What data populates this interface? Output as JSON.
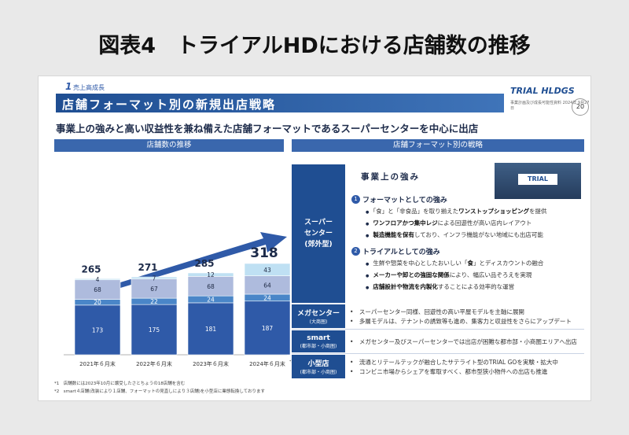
{
  "page_title": "図表4　トライアルHDにおける店舗数の推移",
  "slide": {
    "section_number": "1",
    "section_label": "売上高成長",
    "title": "店舗フォーマット別の新規出店戦略",
    "logo": "TRIAL HLDGS",
    "logo_sub": "事業計画及び成長可能性資料 2024年 9月27日",
    "page_number": "20",
    "lead": "事業上の強みと高い収益性を兼ね備えた店舗フォーマットであるスーパーセンターを中心に出店",
    "left_header": "店舗数の推移",
    "right_header": "店舗フォーマット別の戦略"
  },
  "chart_data": {
    "type": "bar",
    "stacked": true,
    "categories": [
      "2021年６月末",
      "2022年６月末",
      "2023年６月末",
      "2024年６月末"
    ],
    "category_superscript": [
      "",
      "",
      "",
      "*1*2"
    ],
    "totals": [
      "265",
      "271",
      "285",
      "318"
    ],
    "series": [
      {
        "values": [
          173,
          175,
          181,
          187
        ],
        "color": "#2f5aa8"
      },
      {
        "values": [
          20,
          22,
          24,
          24
        ],
        "color": "#4a86c8"
      },
      {
        "values": [
          68,
          67,
          68,
          64
        ],
        "color": "#aebbdd"
      },
      {
        "values": [
          4,
          7,
          12,
          43
        ],
        "color": "#bfe0f3"
      }
    ]
  },
  "notes": [
    "*1　店舗数には2023年10月に譲受したさとちょうの18店舗を含む",
    "*2　smart４店舗(改装により１店舗、フォーマットの見直しにより３店舗)を小型店に業態転換しております"
  ],
  "strategy": {
    "supercenter_label": "スーパー\nセンター\n(郊外型)",
    "strengths_title": "事業上の強み",
    "store_sign": "TRIAL",
    "point1_no": "1",
    "point1_title": "フォーマットとしての強み",
    "point1_bullets": [
      {
        "pre": "「食」と「非食品」を取り揃えた",
        "bold": "ワンストップショッピング",
        "post": "を提供"
      },
      {
        "pre": "",
        "bold": "ワンフロアかつ集中レジ",
        "post": "による回遊性が高い店内レイアウト"
      },
      {
        "pre": "",
        "bold": "製造機能を保有",
        "post": "しており、インフラ機能がない地域にも出店可能"
      }
    ],
    "point2_no": "2",
    "point2_title": "トライアルとしての強み",
    "point2_bullets": [
      {
        "pre": "生鮮や惣菜を中心としたおいしい「",
        "bold": "食",
        "post": "」とディスカウントの融合"
      },
      {
        "pre": "",
        "bold": "メーカーや卸との強固な関係",
        "post": "により、幅広い品ぞろえを実現"
      },
      {
        "pre": "",
        "bold": "店舗設計や物流を内製化",
        "post": "することによる効率的な運営"
      }
    ],
    "formats": [
      {
        "name": "メガセンター",
        "sub": "(大商圏)",
        "lines": [
          "スーパーセンター同様、回遊性の高い平屋モデルを主軸に展開",
          "多層モデルは、テナントの誘致等も進め、集客力と収益性をさらにアップデート"
        ]
      },
      {
        "name": "smart",
        "sub": "(都市部・小商圏)",
        "lines": [
          "メガセンター及びスーパーセンターでは出店が困難な都市部・小商圏エリアへ出店"
        ]
      },
      {
        "name": "小型店",
        "sub": "(都市部・小商圏)",
        "lines": [
          "流通とリテールテックが融合したサテライト型のTRIAL GOを実験・拡大中",
          "コンビニ市場からシェアを奪取すべく、都市型狭小物件への出店も推進"
        ]
      }
    ]
  }
}
